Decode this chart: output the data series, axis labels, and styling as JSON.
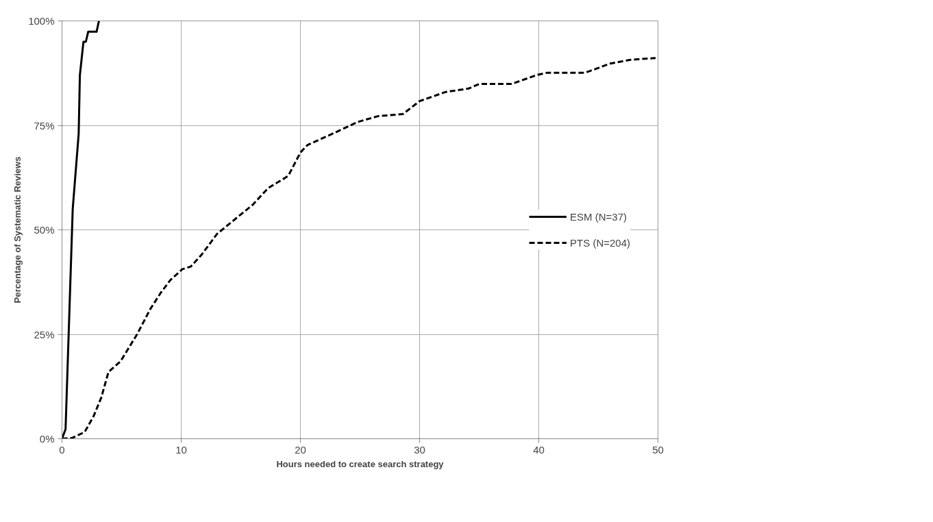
{
  "chart_data": {
    "type": "line",
    "xlabel": "Hours needed to create search strategy",
    "ylabel": "Percentage of Systematic Reviews",
    "xlim": [
      0,
      50
    ],
    "xticks": [
      0,
      10,
      20,
      30,
      40,
      50
    ],
    "ylim": [
      0,
      100
    ],
    "yticks": [
      {
        "value": 0,
        "label": "0%"
      },
      {
        "value": 25,
        "label": "25%"
      },
      {
        "value": 50,
        "label": "50%"
      },
      {
        "value": 75,
        "label": "75%"
      },
      {
        "value": 100,
        "label": "100%"
      }
    ],
    "grid": true,
    "legend": "right",
    "marker": "none",
    "series": [
      {
        "name": "ESM (N=37)",
        "color": "#000000",
        "line_style": "solid",
        "x": [
          0,
          0.3,
          0.9,
          1.4,
          1.5,
          1.8,
          2.0,
          2.2,
          2.9,
          3.1
        ],
        "values": [
          0,
          2.3,
          55,
          73,
          87,
          95,
          95,
          97.4,
          97.4,
          100
        ]
      },
      {
        "name": "PTS (N=204)",
        "color": "#000000",
        "line_style": "dashed",
        "x": [
          0,
          0.85,
          1.9,
          2.65,
          3.3,
          3.9,
          4.9,
          6.3,
          7.4,
          8.3,
          9.1,
          10.1,
          10.8,
          11.7,
          13,
          14.5,
          16,
          17.3,
          18.7,
          19,
          20,
          20.6,
          22.7,
          24.8,
          26.5,
          28.6,
          30,
          32.2,
          34.1,
          35,
          37.7,
          39.9,
          40.7,
          43.9,
          46,
          47.7,
          49.8
        ],
        "values": [
          0,
          0.2,
          1.6,
          5.4,
          9.9,
          16,
          18.5,
          25,
          31,
          35,
          38,
          40.6,
          41.2,
          44,
          49,
          52.5,
          56,
          60,
          62.4,
          63,
          68.5,
          70.3,
          73,
          75.8,
          77.2,
          77.7,
          80.8,
          83,
          83.8,
          84.9,
          84.9,
          87.1,
          87.6,
          87.6,
          89.8,
          90.7,
          91.1
        ]
      }
    ]
  }
}
